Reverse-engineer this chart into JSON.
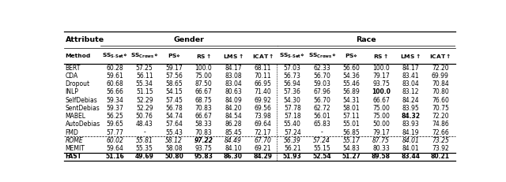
{
  "figsize": [
    6.4,
    2.31
  ],
  "dpi": 100,
  "rows": [
    {
      "method": "BERT",
      "data": [
        "60.28",
        "57.25",
        "59.17",
        "100.0",
        "84.17",
        "68.11",
        "57.03",
        "62.33",
        "56.60",
        "100.0",
        "84.17",
        "72.20"
      ],
      "dashed": false,
      "bold_cols": [],
      "is_fast": false
    },
    {
      "method": "CDA",
      "data": [
        "59.61",
        "56.11",
        "57.56",
        "75.00",
        "83.08",
        "70.11",
        "56.73",
        "56.70",
        "54.36",
        "79.17",
        "83.41",
        "69.99"
      ],
      "dashed": false,
      "bold_cols": [],
      "is_fast": false
    },
    {
      "method": "Dropout",
      "data": [
        "60.68",
        "55.34",
        "58.65",
        "87.50",
        "83.04",
        "66.95",
        "56.94",
        "59.03",
        "55.46",
        "93.75",
        "83.04",
        "70.84"
      ],
      "dashed": false,
      "bold_cols": [],
      "is_fast": false
    },
    {
      "method": "INLP",
      "data": [
        "56.66",
        "51.15",
        "54.15",
        "66.67",
        "80.63",
        "71.40",
        "57.36",
        "67.96",
        "56.89",
        "100.0",
        "83.12",
        "70.80"
      ],
      "dashed": false,
      "bold_cols": [
        9
      ],
      "is_fast": false
    },
    {
      "method": "SelfDebias",
      "data": [
        "59.34",
        "52.29",
        "57.45",
        "68.75",
        "84.09",
        "69.92",
        "54.30",
        "56.70",
        "54.31",
        "66.67",
        "84.24",
        "76.60"
      ],
      "dashed": false,
      "bold_cols": [],
      "is_fast": false
    },
    {
      "method": "SentDebias",
      "data": [
        "59.37",
        "52.29",
        "56.78",
        "70.83",
        "84.20",
        "69.56",
        "57.78",
        "62.72",
        "58.01",
        "75.00",
        "83.95",
        "70.75"
      ],
      "dashed": false,
      "bold_cols": [],
      "is_fast": false
    },
    {
      "method": "MABEL",
      "data": [
        "56.25",
        "50.76",
        "54.74",
        "66.67",
        "84.54",
        "73.98",
        "57.18",
        "56.01",
        "57.11",
        "75.00",
        "84.32",
        "72.20"
      ],
      "dashed": false,
      "bold_cols": [
        10
      ],
      "is_fast": false
    },
    {
      "method": "AutoDebias",
      "data": [
        "59.65",
        "48.43",
        "57.64",
        "58.33",
        "86.28",
        "69.64",
        "55.40",
        "65.83",
        "55.01",
        "50.00",
        "83.93",
        "74.86"
      ],
      "dashed": false,
      "bold_cols": [],
      "is_fast": false
    },
    {
      "method": "FMD",
      "data": [
        "57.77",
        "-",
        "55.43",
        "70.83",
        "85.45",
        "72.17",
        "57.24",
        "-",
        "56.85",
        "79.17",
        "84.19",
        "72.66"
      ],
      "dashed": false,
      "bold_cols": [],
      "is_fast": false
    },
    {
      "method": "ROME",
      "data": [
        "60.02",
        "55.81",
        "58.12",
        "97.22",
        "84.49",
        "67.70",
        "56.39",
        "57.24",
        "55.17",
        "87.75",
        "84.01",
        "73.25"
      ],
      "dashed": true,
      "bold_cols": [
        3
      ],
      "is_fast": false
    },
    {
      "method": "MEMIT",
      "data": [
        "59.64",
        "55.35",
        "58.08",
        "93.75",
        "84.10",
        "69.21",
        "56.21",
        "55.15",
        "54.83",
        "80.33",
        "84.01",
        "73.92"
      ],
      "dashed": false,
      "bold_cols": [],
      "is_fast": false
    },
    {
      "method": "FAST",
      "data": [
        "51.16",
        "49.69",
        "50.80",
        "95.83",
        "86.30",
        "84.29",
        "51.93",
        "52.54",
        "51.27",
        "89.58",
        "83.44",
        "80.21"
      ],
      "dashed": false,
      "bold_cols": [
        0,
        1,
        2,
        3,
        4,
        5,
        6,
        7,
        8,
        9,
        10,
        11
      ],
      "is_fast": true
    }
  ]
}
